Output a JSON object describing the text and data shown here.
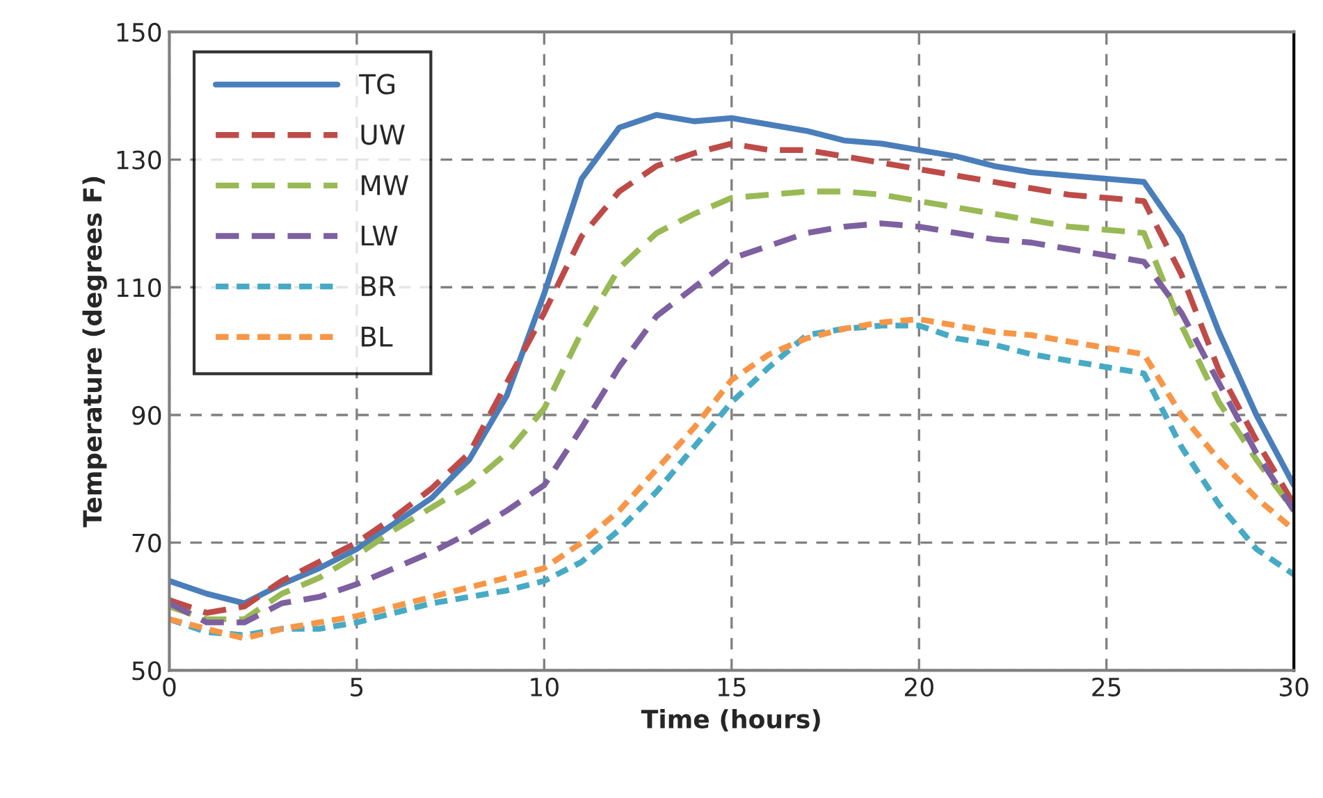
{
  "chart_data": {
    "type": "line",
    "xlabel": "Time (hours)",
    "ylabel": "Temperature (degrees F)",
    "x": [
      0,
      1,
      2,
      3,
      4,
      5,
      6,
      7,
      8,
      9,
      10,
      11,
      12,
      13,
      14,
      15,
      16,
      17,
      18,
      19,
      20,
      21,
      22,
      23,
      24,
      25,
      26,
      27,
      28,
      29,
      30
    ],
    "series": [
      {
        "name": "TG",
        "color": "#4a7ebb",
        "line_style": "solid",
        "values": [
          64,
          62,
          60.5,
          63.5,
          66,
          69,
          73,
          77,
          83,
          93,
          109,
          127,
          135,
          137,
          136,
          136.5,
          135.5,
          134.5,
          133,
          132.5,
          131.5,
          130.5,
          129,
          128,
          127.5,
          127,
          126.5,
          118,
          103,
          90,
          79
        ]
      },
      {
        "name": "UW",
        "color": "#be4b48",
        "line_style": "dashed",
        "values": [
          61,
          59,
          60,
          64,
          67,
          70,
          74,
          78.5,
          84,
          95,
          106,
          118,
          125,
          129,
          131,
          132.5,
          131.5,
          131.5,
          130.5,
          129.5,
          128.5,
          127.5,
          126.5,
          125.5,
          124.5,
          124,
          123.5,
          112,
          97,
          86,
          76
        ]
      },
      {
        "name": "MW",
        "color": "#98b954",
        "line_style": "dashed",
        "values": [
          60,
          58,
          58,
          62,
          64.5,
          68,
          72,
          75.5,
          79,
          84,
          91,
          103,
          113,
          118.5,
          121.5,
          124,
          124.5,
          125,
          125,
          124.5,
          123.5,
          122.5,
          121.5,
          120.5,
          119.5,
          119,
          118.5,
          104,
          92,
          83,
          75
        ]
      },
      {
        "name": "LW",
        "color": "#7d60a0",
        "line_style": "dashed",
        "values": [
          60.5,
          57.5,
          57.5,
          60.5,
          61.5,
          63.5,
          66,
          68.5,
          71.5,
          75,
          79,
          88,
          97.5,
          105.5,
          110,
          114.5,
          116.5,
          118.5,
          119.5,
          120,
          119.5,
          118.5,
          117.5,
          117,
          116,
          115,
          114,
          106,
          95,
          84,
          75
        ]
      },
      {
        "name": "BR",
        "color": "#46aac5",
        "line_style": "dotted",
        "values": [
          58,
          56,
          55.5,
          56.5,
          56.5,
          57.5,
          59,
          60.5,
          61.5,
          62.5,
          64,
          67,
          72,
          78,
          85,
          92,
          97.5,
          102.5,
          103.5,
          104,
          104,
          102,
          101,
          99.5,
          98.5,
          97.5,
          96.5,
          85,
          76,
          69,
          65
        ]
      },
      {
        "name": "BL",
        "color": "#f79646",
        "line_style": "dotted",
        "values": [
          58,
          56.5,
          55,
          56.5,
          57.5,
          58.5,
          60,
          61.5,
          63,
          64.5,
          66,
          70,
          75,
          81.5,
          88,
          95.5,
          99.5,
          102,
          103.5,
          104.5,
          105,
          104,
          103,
          102.5,
          101.5,
          100.5,
          99.5,
          90,
          83,
          77,
          72
        ]
      }
    ],
    "xlim": [
      0,
      30
    ],
    "xticks": [
      0,
      5,
      10,
      15,
      20,
      25,
      30
    ],
    "ylim": [
      50,
      150
    ],
    "yticks": [
      50,
      70,
      90,
      110,
      130,
      150
    ],
    "grid": true,
    "legend": "top left"
  }
}
